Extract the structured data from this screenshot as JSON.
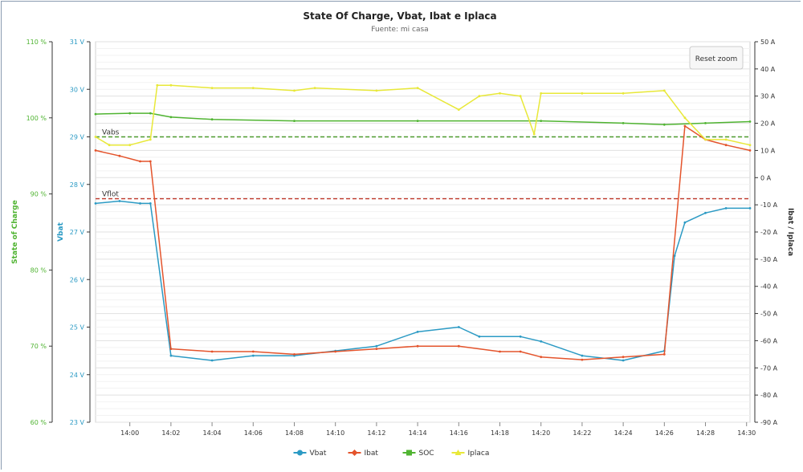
{
  "chart_data": {
    "type": "line",
    "title": "State Of Charge, Vbat, Ibat e Iplaca",
    "subtitle": "Fuente: mi casa",
    "reset_zoom_label": "Reset zoom",
    "x_axis": {
      "range": [
        "13:58:20",
        "14:30:10"
      ],
      "ticks": [
        "14:00",
        "14:02",
        "14:04",
        "14:06",
        "14:08",
        "14:10",
        "14:12",
        "14:14",
        "14:16",
        "14:18",
        "14:20",
        "14:22",
        "14:24",
        "14:26",
        "14:28",
        "14:30"
      ]
    },
    "y_axes": [
      {
        "id": "soc",
        "label": "State of Charge",
        "color": "#50b432",
        "range": [
          60,
          110
        ],
        "ticks": [
          "60 %",
          "70 %",
          "80 %",
          "90 %",
          "100 %",
          "110 %"
        ]
      },
      {
        "id": "vbat",
        "label": "Vbat",
        "color": "#2b9ac4",
        "range": [
          23,
          31
        ],
        "ticks": [
          "23 V",
          "24 V",
          "25 V",
          "26 V",
          "27 V",
          "28 V",
          "29 V",
          "30 V",
          "31 V"
        ]
      },
      {
        "id": "current",
        "label": "Ibat / Iplaca",
        "color": "#333333",
        "range": [
          -90,
          50
        ],
        "ticks": [
          "-90 A",
          "-80 A",
          "-70 A",
          "-60 A",
          "-50 A",
          "-40 A",
          "-30 A",
          "-20 A",
          "-10 A",
          "0 A",
          "10 A",
          "20 A",
          "30 A",
          "40 A",
          "50 A"
        ]
      }
    ],
    "reference_lines": [
      {
        "label": "Vabs",
        "axis": "vbat",
        "value": 29.0,
        "color": "#4d9a2e"
      },
      {
        "label": "Vflot",
        "axis": "vbat",
        "value": 27.7,
        "color": "#c0392b"
      }
    ],
    "legend": {
      "position": "bottom-center"
    },
    "grid": true,
    "series": [
      {
        "name": "Vbat",
        "axis": "vbat",
        "color": "#2b9ac4",
        "marker": "circle",
        "x": [
          "13:58:20",
          "13:59:30",
          "14:00:30",
          "14:01:00",
          "14:02:00",
          "14:04:00",
          "14:06:00",
          "14:08:00",
          "14:10:00",
          "14:12:00",
          "14:14:00",
          "14:16:00",
          "14:17:00",
          "14:19:00",
          "14:20:00",
          "14:22:00",
          "14:24:00",
          "14:26:00",
          "14:26:30",
          "14:27:00",
          "14:28:00",
          "14:29:00",
          "14:30:10"
        ],
        "y": [
          27.6,
          27.65,
          27.6,
          27.6,
          24.4,
          24.3,
          24.4,
          24.4,
          24.5,
          24.6,
          24.9,
          25.0,
          24.8,
          24.8,
          24.7,
          24.4,
          24.3,
          24.5,
          26.5,
          27.2,
          27.4,
          27.5,
          27.5
        ]
      },
      {
        "name": "Ibat",
        "axis": "current",
        "color": "#e4542c",
        "marker": "diamond",
        "x": [
          "13:58:20",
          "13:59:30",
          "14:00:30",
          "14:01:00",
          "14:02:00",
          "14:04:00",
          "14:06:00",
          "14:08:00",
          "14:10:00",
          "14:12:00",
          "14:14:00",
          "14:16:00",
          "14:18:00",
          "14:19:00",
          "14:20:00",
          "14:22:00",
          "14:24:00",
          "14:26:00",
          "14:27:00",
          "14:28:00",
          "14:29:00",
          "14:30:10"
        ],
        "y": [
          10,
          8,
          6,
          6,
          -63,
          -64,
          -64,
          -65,
          -64,
          -63,
          -62,
          -62,
          -64,
          -64,
          -66,
          -67,
          -66,
          -65,
          19,
          14,
          12,
          10
        ]
      },
      {
        "name": "SOC",
        "axis": "soc",
        "color": "#50b432",
        "marker": "square",
        "x": [
          "13:58:20",
          "14:00:00",
          "14:01:00",
          "14:02:00",
          "14:04:00",
          "14:08:00",
          "14:14:00",
          "14:20:00",
          "14:24:00",
          "14:26:00",
          "14:28:00",
          "14:30:10"
        ],
        "y": [
          100.5,
          100.6,
          100.6,
          100.1,
          99.8,
          99.6,
          99.6,
          99.6,
          99.3,
          99.1,
          99.3,
          99.5
        ]
      },
      {
        "name": "Iplaca",
        "axis": "current",
        "color": "#e8e838",
        "marker": "triangle",
        "x": [
          "13:58:20",
          "13:59:00",
          "14:00:00",
          "14:01:00",
          "14:01:20",
          "14:02:00",
          "14:04:00",
          "14:06:00",
          "14:08:00",
          "14:09:00",
          "14:12:00",
          "14:14:00",
          "14:16:00",
          "14:17:00",
          "14:18:00",
          "14:19:00",
          "14:19:40",
          "14:20:00",
          "14:22:00",
          "14:24:00",
          "14:26:00",
          "14:27:00",
          "14:28:00",
          "14:29:00",
          "14:30:10"
        ],
        "y": [
          15,
          12,
          12,
          14,
          34,
          34,
          33,
          33,
          32,
          33,
          32,
          33,
          25,
          30,
          31,
          30,
          16,
          31,
          31,
          31,
          32,
          22,
          14,
          14,
          12
        ]
      }
    ]
  }
}
